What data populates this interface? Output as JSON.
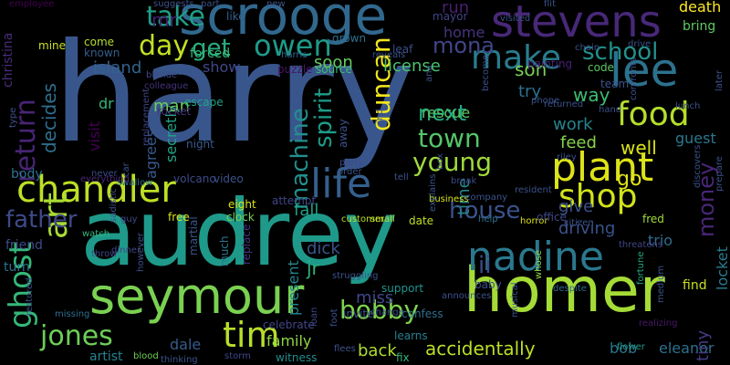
{
  "background": "#000000",
  "words": [
    {
      "text": "harry",
      "color": "#39568c"
    },
    {
      "text": "audrey",
      "color": "#1f9a8a"
    },
    {
      "text": "homer",
      "color": "#a5db36"
    },
    {
      "text": "seymour",
      "color": "#7ad151"
    },
    {
      "text": "scrooge",
      "color": "#31688e"
    },
    {
      "text": "stevens",
      "color": "#482878"
    },
    {
      "text": "chandler",
      "color": "#bddf26"
    },
    {
      "text": "plant",
      "color": "#dde318"
    },
    {
      "text": "nadine",
      "color": "#2a788e"
    },
    {
      "text": "lee",
      "color": "#2c728e"
    },
    {
      "text": "life",
      "color": "#355f8d"
    },
    {
      "text": "shop",
      "color": "#d2e21b"
    },
    {
      "text": "food",
      "color": "#b5de2b"
    },
    {
      "text": "return",
      "color": "#482475"
    },
    {
      "text": "art",
      "color": "#a8db34"
    },
    {
      "text": "ghost",
      "color": "#35b779"
    },
    {
      "text": "jones",
      "color": "#6ece58"
    },
    {
      "text": "tim",
      "color": "#b8de29"
    },
    {
      "text": "bobby",
      "color": "#7fd34e"
    },
    {
      "text": "house",
      "color": "#3b528b"
    },
    {
      "text": "father",
      "color": "#3e4a89"
    },
    {
      "text": "town",
      "color": "#54c568"
    },
    {
      "text": "young",
      "color": "#9fda3a"
    },
    {
      "text": "make",
      "color": "#287d8e"
    },
    {
      "text": "mona",
      "color": "#404688"
    },
    {
      "text": "school",
      "color": "#21918c"
    },
    {
      "text": "owen",
      "color": "#1e9b8a"
    },
    {
      "text": "take",
      "color": "#1f9e89"
    },
    {
      "text": "day",
      "color": "#c2df23"
    },
    {
      "text": "get",
      "color": "#29af7f"
    },
    {
      "text": "duncan",
      "color": "#f1e51d"
    },
    {
      "text": "spirit",
      "color": "#1e9c89"
    },
    {
      "text": "machine",
      "color": "#218f8d"
    },
    {
      "text": "money",
      "color": "#482677"
    },
    {
      "text": "ii",
      "color": "#3e4989"
    },
    {
      "text": "next",
      "color": "#22a884"
    },
    {
      "text": "decides",
      "color": "#2e6f8e"
    },
    {
      "text": "dale",
      "color": "#365c8d"
    },
    {
      "text": "family",
      "color": "#8ed645"
    },
    {
      "text": "eleanor",
      "color": "#2d718e"
    },
    {
      "text": "accidentally",
      "color": "#bade28"
    },
    {
      "text": "artist",
      "color": "#26828e"
    },
    {
      "text": "back",
      "color": "#b0dd2f"
    },
    {
      "text": "bob",
      "color": "#2b748e"
    },
    {
      "text": "miss",
      "color": "#3f4788"
    },
    {
      "text": "jr",
      "color": "#2fb47c"
    },
    {
      "text": "dick",
      "color": "#3a548c"
    },
    {
      "text": "fall",
      "color": "#1fa187"
    },
    {
      "text": "time",
      "color": "#24878e"
    },
    {
      "text": "present",
      "color": "#24868e"
    },
    {
      "text": "island",
      "color": "#33628d"
    },
    {
      "text": "show",
      "color": "#3f4889"
    },
    {
      "text": "visit",
      "color": "#440154"
    },
    {
      "text": "dr",
      "color": "#31b57b"
    },
    {
      "text": "agrees",
      "color": "#38598c"
    },
    {
      "text": "secretly",
      "color": "#20a386"
    },
    {
      "text": "man",
      "color": "#6ccd5a"
    },
    {
      "text": "mr",
      "color": "#481c6e"
    },
    {
      "text": "run",
      "color": "#481f70"
    },
    {
      "text": "home",
      "color": "#46337f"
    },
    {
      "text": "soon",
      "color": "#65cb5e"
    },
    {
      "text": "license",
      "color": "#4ac16d"
    },
    {
      "text": "son",
      "color": "#7ad151"
    },
    {
      "text": "try",
      "color": "#2c728e"
    },
    {
      "text": "way",
      "color": "#3dbc74"
    },
    {
      "text": "rescue",
      "color": "#5ac864"
    },
    {
      "text": "work",
      "color": "#25848e"
    },
    {
      "text": "feed",
      "color": "#84d44b"
    },
    {
      "text": "well",
      "color": "#dae319"
    },
    {
      "text": "go",
      "color": "#e2e418"
    },
    {
      "text": "give",
      "color": "#3b528b"
    },
    {
      "text": "driving",
      "color": "#3b528b"
    },
    {
      "text": "trio",
      "color": "#2f6c8e"
    },
    {
      "text": "guest",
      "color": "#2a788e"
    },
    {
      "text": "tiny",
      "color": "#443a83"
    },
    {
      "text": "locket",
      "color": "#287c8e"
    },
    {
      "text": "find",
      "color": "#c8e020"
    },
    {
      "text": "death",
      "color": "#fde725"
    },
    {
      "text": "bring",
      "color": "#5ec962"
    },
    {
      "text": "body",
      "color": "#2c738e"
    },
    {
      "text": "friend",
      "color": "#3e4a89"
    },
    {
      "text": "turn",
      "color": "#2c728e"
    },
    {
      "text": "christina",
      "color": "#472d7b"
    },
    {
      "text": "mine",
      "color": "#cae11f"
    },
    {
      "text": "employee",
      "color": "#440154"
    },
    {
      "text": "come",
      "color": "#b5de2b"
    },
    {
      "text": "known",
      "color": "#355e8d"
    },
    {
      "text": "forced",
      "color": "#35b779"
    },
    {
      "text": "rocket",
      "color": "#46327e"
    },
    {
      "text": "like",
      "color": "#35608d"
    },
    {
      "text": "film",
      "color": "#38598c"
    },
    {
      "text": "leaf",
      "color": "#3c4f8a"
    },
    {
      "text": "grown",
      "color": "#2d708e"
    },
    {
      "text": "puzzle",
      "color": "#481668"
    },
    {
      "text": "source",
      "color": "#3dbc74"
    },
    {
      "text": "mayor",
      "color": "#414487"
    },
    {
      "text": "painting",
      "color": "#482173"
    },
    {
      "text": "code",
      "color": "#5ac864"
    },
    {
      "text": "team",
      "color": "#3b528b"
    },
    {
      "text": "night",
      "color": "#38598c"
    },
    {
      "text": "escape",
      "color": "#20a386"
    },
    {
      "text": "attempt",
      "color": "#3f4788"
    },
    {
      "text": "clock",
      "color": "#77d153"
    },
    {
      "text": "eight",
      "color": "#dae319"
    },
    {
      "text": "free",
      "color": "#d8e219"
    },
    {
      "text": "martial",
      "color": "#39568c"
    },
    {
      "text": "replace",
      "color": "#46337f"
    },
    {
      "text": "much",
      "color": "#2b748e"
    },
    {
      "text": "celebrate",
      "color": "#404688"
    },
    {
      "text": "witness",
      "color": "#228c8d"
    },
    {
      "text": "invite",
      "color": "#3b528b"
    },
    {
      "text": "change",
      "color": "#3b528b"
    },
    {
      "text": "confess",
      "color": "#2e6e8e"
    },
    {
      "text": "support",
      "color": "#1f948c"
    },
    {
      "text": "learns",
      "color": "#27808e"
    },
    {
      "text": "baby",
      "color": "#3c4f8a"
    },
    {
      "text": "whose",
      "color": "#8ed645"
    },
    {
      "text": "despite",
      "color": "#31688e"
    },
    {
      "text": "fortune",
      "color": "#22a884"
    },
    {
      "text": "realizing",
      "color": "#48186a"
    },
    {
      "text": "flower",
      "color": "#1e9b8a"
    },
    {
      "text": "help",
      "color": "#2c728e"
    },
    {
      "text": "horror",
      "color": "#dde318"
    },
    {
      "text": "threatens",
      "color": "#414487"
    },
    {
      "text": "date",
      "color": "#c0df25"
    },
    {
      "text": "business",
      "color": "#dae319"
    },
    {
      "text": "office",
      "color": "#3f4788"
    },
    {
      "text": "fred",
      "color": "#a2da37"
    },
    {
      "text": "customer",
      "color": "#bddf26"
    },
    {
      "text": "small",
      "color": "#bddf26"
    },
    {
      "text": "explains",
      "color": "#39568c"
    },
    {
      "text": "fix",
      "color": "#31b57b"
    },
    {
      "text": "blood",
      "color": "#6ccd5a"
    },
    {
      "text": "storm",
      "color": "#3f4788"
    },
    {
      "text": "flees",
      "color": "#3b528b"
    },
    {
      "text": "loan",
      "color": "#3f4788"
    },
    {
      "text": "video",
      "color": "#3b528b"
    },
    {
      "text": "volcano",
      "color": "#3e4a89"
    },
    {
      "text": "swallow",
      "color": "#2d708e"
    },
    {
      "text": "watch",
      "color": "#35b779"
    },
    {
      "text": "guy",
      "color": "#3e4a89"
    },
    {
      "text": "throw",
      "color": "#3f4788"
    },
    {
      "text": "dinner",
      "color": "#3f4788"
    },
    {
      "text": "however",
      "color": "#3b528b"
    },
    {
      "text": "missing",
      "color": "#2e6f8e"
    },
    {
      "text": "restored",
      "color": "#3b528b"
    },
    {
      "text": "everything",
      "color": "#482878"
    },
    {
      "text": "never",
      "color": "#3e4a89"
    },
    {
      "text": "car",
      "color": "#3b528b"
    },
    {
      "text": "replacement",
      "color": "#404688"
    },
    {
      "text": "colleague",
      "color": "#46337f"
    },
    {
      "text": "blonde",
      "color": "#3e4a89"
    },
    {
      "text": "away",
      "color": "#3b528b"
    },
    {
      "text": "party",
      "color": "#3e4a89"
    },
    {
      "text": "order",
      "color": "#3b528b"
    },
    {
      "text": "tell",
      "color": "#3b528b"
    },
    {
      "text": "box",
      "color": "#3f4788"
    },
    {
      "text": "resident",
      "color": "#3b528b"
    },
    {
      "text": "break",
      "color": "#3e4a89"
    },
    {
      "text": "harris",
      "color": "#31688e"
    },
    {
      "text": "new",
      "color": "#3b528b"
    },
    {
      "text": "ana",
      "color": "#3b528b"
    },
    {
      "text": "visited",
      "color": "#3b528b"
    },
    {
      "text": "chain",
      "color": "#3b528b"
    },
    {
      "text": "drive",
      "color": "#3b528b"
    },
    {
      "text": "later",
      "color": "#3b528b"
    },
    {
      "text": "lunch",
      "color": "#3b528b"
    },
    {
      "text": "returned",
      "color": "#3b528b"
    },
    {
      "text": "phone",
      "color": "#3b528b"
    },
    {
      "text": "hand",
      "color": "#3b528b"
    },
    {
      "text": "riley",
      "color": "#3b528b"
    },
    {
      "text": "citizen",
      "color": "#3b528b"
    },
    {
      "text": "company",
      "color": "#3b528b"
    },
    {
      "text": "medium",
      "color": "#3b528b"
    },
    {
      "text": "announces",
      "color": "#3b528b"
    },
    {
      "text": "foot",
      "color": "#3b528b"
    },
    {
      "text": "struggling",
      "color": "#3b528b"
    },
    {
      "text": "type",
      "color": "#3b528b"
    },
    {
      "text": "thinking",
      "color": "#3b528b"
    },
    {
      "text": "suggests",
      "color": "#3b528b"
    },
    {
      "text": "part",
      "color": "#3b528b"
    },
    {
      "text": "flit",
      "color": "#3b528b"
    },
    {
      "text": "reveals",
      "color": "#3b528b"
    },
    {
      "text": "end",
      "color": "#3b528b"
    },
    {
      "text": "confronts",
      "color": "#3b528b"
    },
    {
      "text": "prepare",
      "color": "#3b528b"
    },
    {
      "text": "discovers",
      "color": "#3b528b"
    },
    {
      "text": "become",
      "color": "#3b528b"
    },
    {
      "text": "musical",
      "color": "#3b528b"
    },
    {
      "text": "sadistic",
      "color": "#3b528b"
    },
    {
      "text": "begin",
      "color": "#3b528b"
    }
  ]
}
